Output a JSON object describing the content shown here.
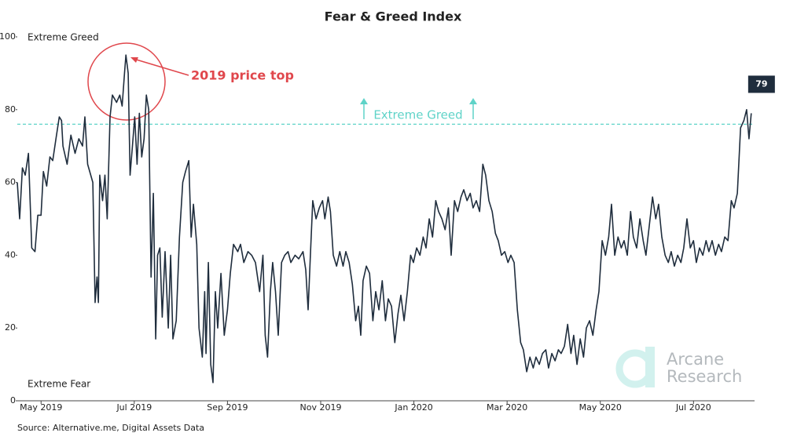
{
  "chart_data": {
    "type": "line",
    "title": "Fear & Greed Index",
    "source": "Source: Alternative.me, Digital Assets Data",
    "zone_labels": {
      "top": "Extreme Greed",
      "bottom": "Extreme Fear"
    },
    "threshold": {
      "value": 76,
      "label": "Extreme Greed",
      "color": "#5fd3c8"
    },
    "annotation": {
      "text": "2019 price top",
      "color": "#e0474c"
    },
    "watermark": [
      "Arcane",
      "Research"
    ],
    "xlim": [
      -0.51,
      15.31
    ],
    "xticks": [
      {
        "value": 0,
        "label": "May 2019"
      },
      {
        "value": 2,
        "label": "Jul 2019"
      },
      {
        "value": 4,
        "label": "Sep 2019"
      },
      {
        "value": 6,
        "label": "Nov 2019"
      },
      {
        "value": 8,
        "label": "Jan 2020"
      },
      {
        "value": 10,
        "label": "Mar 2020"
      },
      {
        "value": 12,
        "label": "May 2020"
      },
      {
        "value": 14,
        "label": "Jul 2020"
      }
    ],
    "ylim": [
      0,
      100
    ],
    "yticks": [
      0,
      20,
      40,
      60,
      80,
      100
    ],
    "x": [
      -0.51,
      -0.46,
      -0.4,
      -0.34,
      -0.27,
      -0.2,
      -0.13,
      -0.07,
      0,
      0.05,
      0.12,
      0.19,
      0.25,
      0.32,
      0.39,
      0.44,
      0.47,
      0.56,
      0.64,
      0.73,
      0.81,
      0.89,
      0.94,
      1.0,
      1.11,
      1.16,
      1.2,
      1.23,
      1.26,
      1.32,
      1.37,
      1.42,
      1.48,
      1.53,
      1.62,
      1.69,
      1.74,
      1.79,
      1.82,
      1.87,
      1.91,
      1.96,
      2.01,
      2.06,
      2.11,
      2.16,
      2.21,
      2.26,
      2.31,
      2.36,
      2.41,
      2.46,
      2.5,
      2.55,
      2.6,
      2.66,
      2.73,
      2.78,
      2.83,
      2.9,
      2.97,
      3.04,
      3.1,
      3.17,
      3.22,
      3.27,
      3.34,
      3.39,
      3.46,
      3.51,
      3.54,
      3.59,
      3.64,
      3.69,
      3.74,
      3.79,
      3.86,
      3.93,
      4.0,
      4.06,
      4.13,
      4.22,
      4.28,
      4.35,
      4.44,
      4.52,
      4.6,
      4.69,
      4.76,
      4.81,
      4.86,
      4.92,
      4.97,
      5.03,
      5.09,
      5.16,
      5.23,
      5.3,
      5.36,
      5.45,
      5.53,
      5.62,
      5.68,
      5.73,
      5.78,
      5.83,
      5.9,
      5.97,
      6.04,
      6.09,
      6.16,
      6.21,
      6.27,
      6.34,
      6.41,
      6.48,
      6.54,
      6.61,
      6.68,
      6.75,
      6.81,
      6.86,
      6.91,
      6.98,
      7.05,
      7.12,
      7.18,
      7.25,
      7.32,
      7.39,
      7.45,
      7.52,
      7.59,
      7.66,
      7.72,
      7.79,
      7.86,
      7.93,
      7.99,
      8.06,
      8.13,
      8.2,
      8.26,
      8.33,
      8.4,
      8.47,
      8.53,
      8.6,
      8.67,
      8.74,
      8.8,
      8.87,
      8.94,
      9.01,
      9.07,
      9.14,
      9.21,
      9.27,
      9.34,
      9.41,
      9.48,
      9.54,
      9.61,
      9.68,
      9.75,
      9.81,
      9.88,
      9.95,
      10.02,
      10.08,
      10.15,
      10.22,
      10.29,
      10.35,
      10.42,
      10.49,
      10.56,
      10.62,
      10.69,
      10.76,
      10.83,
      10.89,
      10.96,
      11.03,
      11.1,
      11.16,
      11.23,
      11.3,
      11.37,
      11.43,
      11.5,
      11.57,
      11.64,
      11.7,
      11.77,
      11.84,
      11.91,
      11.97,
      12.04,
      12.11,
      12.18,
      12.24,
      12.31,
      12.38,
      12.45,
      12.51,
      12.58,
      12.65,
      12.71,
      12.78,
      12.85,
      12.92,
      12.98,
      13.05,
      13.12,
      13.19,
      13.25,
      13.32,
      13.39,
      13.46,
      13.52,
      13.59,
      13.66,
      13.73,
      13.79,
      13.86,
      13.93,
      14.0,
      14.06,
      14.13,
      14.2,
      14.27,
      14.33,
      14.4,
      14.47,
      14.54,
      14.6,
      14.67,
      14.74,
      14.81,
      14.87,
      14.94,
      15.01,
      15.08,
      15.14,
      15.19,
      15.24
    ],
    "series": [
      {
        "color": "#1f2d3d",
        "values": [
          60,
          50,
          64,
          62,
          68,
          42,
          41,
          51,
          51,
          63,
          59,
          67,
          66,
          72,
          78,
          77,
          70,
          65,
          73,
          68,
          72,
          70,
          78,
          65,
          60,
          27,
          34,
          27,
          62,
          55,
          62,
          50,
          78,
          84,
          82,
          84,
          81,
          90,
          95,
          90,
          62,
          70,
          78,
          65,
          79,
          67,
          72,
          84,
          80,
          34,
          57,
          17,
          40,
          42,
          23,
          41,
          20,
          40,
          17,
          22,
          45,
          60,
          63,
          66,
          45,
          54,
          43,
          20,
          12,
          30,
          13,
          38,
          10,
          5,
          30,
          20,
          35,
          18,
          25,
          35,
          43,
          41,
          43,
          38,
          41,
          40,
          38,
          30,
          40,
          18,
          12,
          30,
          38,
          30,
          18,
          38,
          40,
          41,
          38,
          40,
          39,
          41,
          36,
          25,
          40,
          55,
          50,
          53,
          55,
          50,
          56,
          52,
          40,
          37,
          41,
          37,
          41,
          38,
          32,
          22,
          26,
          18,
          33,
          37,
          35,
          22,
          30,
          25,
          33,
          22,
          28,
          26,
          16,
          24,
          29,
          22,
          30,
          40,
          38,
          42,
          40,
          45,
          42,
          50,
          45,
          55,
          52,
          50,
          47,
          53,
          40,
          55,
          52,
          56,
          58,
          55,
          57,
          53,
          55,
          52,
          65,
          62,
          55,
          52,
          46,
          44,
          40,
          41,
          38,
          40,
          38,
          25,
          16,
          14,
          8,
          12,
          9,
          12,
          10,
          13,
          14,
          9,
          13,
          11,
          14,
          13,
          15,
          21,
          13,
          18,
          10,
          17,
          12,
          20,
          22,
          18,
          25,
          30,
          44,
          40,
          45,
          54,
          40,
          45,
          42,
          44,
          40,
          52,
          45,
          42,
          50,
          44,
          40,
          48,
          56,
          50,
          54,
          45,
          40,
          38,
          41,
          37,
          40,
          38,
          42,
          50,
          42,
          44,
          38,
          42,
          40,
          44,
          41,
          44,
          40,
          43,
          41,
          45,
          44,
          55,
          53,
          57,
          75,
          77,
          80,
          72,
          79
        ]
      }
    ]
  }
}
